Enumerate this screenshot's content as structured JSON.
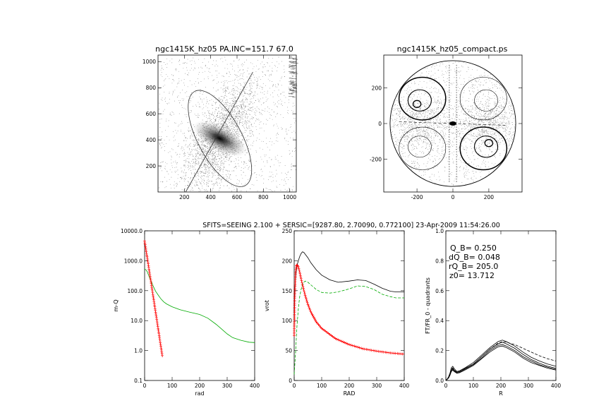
{
  "header": {
    "fit_params": "SFITS=SEEING 2.100 + SERSIC=[9287.80, 2.70090, 0.772100]  23-Apr-2009 11:54:26.00"
  },
  "chart_data": [
    {
      "id": "image_panel",
      "type": "scatter",
      "title": "ngc1415K_hz05 PA,INC=151.7 67.0",
      "xlim": [
        0,
        1050
      ],
      "ylim": [
        0,
        1050
      ],
      "xticks": [
        "200",
        "400",
        "600",
        "800",
        "1000"
      ],
      "yticks": [
        "200",
        "400",
        "600",
        "800",
        "1000"
      ],
      "ellipse": {
        "center": [
          470,
          410
        ],
        "semi_major": 410,
        "semi_minor": 165,
        "pa_deg": 151.7
      },
      "major_axis_line": {
        "x": [
          210,
          720
        ],
        "y": [
          -30,
          920
        ]
      }
    },
    {
      "id": "compact_panel",
      "type": "scatter",
      "title": "ngc1415K_hz05_compact.ps",
      "xlim": [
        -385,
        385
      ],
      "ylim": [
        -385,
        385
      ],
      "xticks": [
        "-200",
        "0",
        "200"
      ],
      "yticks": [
        "-200",
        "0",
        "200"
      ],
      "disk_radius": 350
    },
    {
      "id": "mu_profile",
      "type": "line",
      "xlabel": "rad",
      "ylabel": "m-Q",
      "xlim": [
        0,
        400
      ],
      "ylim": [
        0.1,
        10000
      ],
      "yscale": "log",
      "xticks": [
        "0",
        "100",
        "200",
        "300",
        "400"
      ],
      "yticks": [
        "0.1",
        "1.0",
        "10.0",
        "100.0",
        "1000.0",
        "10000.0"
      ],
      "series": [
        {
          "color": "#00aa00",
          "x": [
            0,
            5,
            10,
            15,
            20,
            30,
            40,
            50,
            60,
            70,
            80,
            100,
            130,
            160,
            200,
            230,
            260,
            280,
            300,
            320,
            350,
            380,
            400
          ],
          "y": [
            520,
            500,
            420,
            320,
            250,
            150,
            95,
            70,
            52,
            42,
            36,
            29,
            23,
            19.5,
            16,
            12,
            7.5,
            5.2,
            3.6,
            2.7,
            2.2,
            1.9,
            1.85
          ]
        },
        {
          "color": "#ff0000",
          "marker": "plus",
          "x": [
            0,
            3,
            6,
            10,
            15,
            20,
            25,
            30,
            35,
            40,
            45,
            50,
            55,
            60,
            65
          ],
          "y": [
            4500,
            3000,
            2000,
            1200,
            600,
            300,
            150,
            75,
            38,
            19,
            9.6,
            4.8,
            2.4,
            1.2,
            0.6
          ]
        }
      ]
    },
    {
      "id": "rotation_curve",
      "type": "line",
      "xlabel": "RAD",
      "ylabel": "vrot",
      "xlim": [
        0,
        400
      ],
      "ylim": [
        0,
        250
      ],
      "xticks": [
        "0",
        "100",
        "200",
        "300",
        "400"
      ],
      "yticks": [
        "0",
        "50",
        "100",
        "150",
        "200",
        "250"
      ],
      "series": [
        {
          "color": "#000000",
          "x": [
            0,
            2,
            5,
            8,
            10,
            15,
            20,
            25,
            30,
            35,
            40,
            50,
            60,
            80,
            100,
            130,
            160,
            200,
            230,
            260,
            290,
            320,
            350,
            370,
            400
          ],
          "y": [
            115,
            150,
            172,
            185,
            192,
            200,
            207,
            212,
            215,
            214,
            211,
            205,
            197,
            185,
            176,
            168,
            164,
            166,
            168,
            167,
            161,
            154,
            149,
            148,
            148
          ]
        },
        {
          "color": "#00aa00",
          "dash": true,
          "x": [
            0,
            5,
            10,
            15,
            20,
            25,
            30,
            35,
            40,
            50,
            60,
            80,
            100,
            130,
            160,
            200,
            230,
            260,
            290,
            320,
            350,
            370,
            400
          ],
          "y": [
            10,
            45,
            90,
            120,
            140,
            152,
            160,
            164,
            166,
            164,
            160,
            152,
            147,
            146,
            148,
            153,
            158,
            157,
            152,
            144,
            140,
            138,
            138
          ]
        },
        {
          "color": "#ff0000",
          "marker": "plus",
          "x": [
            0,
            2,
            5,
            8,
            10,
            15,
            20,
            25,
            30,
            40,
            50,
            60,
            80,
            100,
            150,
            200,
            250,
            300,
            350,
            400
          ],
          "y": [
            75,
            140,
            180,
            191,
            193,
            190,
            181,
            170,
            160,
            142,
            127,
            115,
            98,
            87,
            70,
            60,
            53,
            49,
            46,
            44
          ]
        }
      ]
    },
    {
      "id": "q_profile",
      "type": "line",
      "xlabel": "R",
      "ylabel": "FT/FR_0 - quadrants",
      "xlim": [
        0,
        400
      ],
      "ylim": [
        0,
        1.0
      ],
      "xticks": [
        "0",
        "100",
        "200",
        "300",
        "400"
      ],
      "yticks": [
        "0.0",
        "0.2",
        "0.4",
        "0.6",
        "0.8",
        "1.0"
      ],
      "annotations": [
        "Q_B=  0.250",
        "dQ_B=  0.048",
        "rQ_B=  205.0",
        "z0= 13.712"
      ],
      "x": [
        0,
        5,
        10,
        15,
        20,
        25,
        30,
        40,
        50,
        70,
        100,
        130,
        160,
        190,
        205,
        220,
        250,
        280,
        310,
        340,
        370,
        400
      ],
      "series": [
        {
          "color": "#000000",
          "y": [
            0,
            0.01,
            0.025,
            0.05,
            0.085,
            0.095,
            0.08,
            0.06,
            0.065,
            0.085,
            0.12,
            0.17,
            0.22,
            0.26,
            0.27,
            0.26,
            0.23,
            0.19,
            0.155,
            0.13,
            0.11,
            0.095
          ]
        },
        {
          "color": "#000000",
          "y": [
            0,
            0.01,
            0.02,
            0.045,
            0.075,
            0.085,
            0.07,
            0.055,
            0.06,
            0.08,
            0.11,
            0.16,
            0.21,
            0.245,
            0.255,
            0.245,
            0.215,
            0.175,
            0.14,
            0.115,
            0.095,
            0.082
          ]
        },
        {
          "color": "#000000",
          "y": [
            0,
            0.008,
            0.018,
            0.04,
            0.065,
            0.075,
            0.065,
            0.05,
            0.055,
            0.075,
            0.105,
            0.15,
            0.2,
            0.235,
            0.24,
            0.23,
            0.2,
            0.16,
            0.13,
            0.105,
            0.088,
            0.075
          ]
        },
        {
          "color": "#000000",
          "y": [
            0,
            0.008,
            0.016,
            0.035,
            0.06,
            0.07,
            0.06,
            0.048,
            0.052,
            0.07,
            0.1,
            0.145,
            0.19,
            0.225,
            0.23,
            0.22,
            0.19,
            0.15,
            0.12,
            0.1,
            0.082,
            0.07
          ]
        },
        {
          "color": "#000000",
          "dash": true,
          "y": [
            0,
            0.01,
            0.022,
            0.045,
            0.07,
            0.08,
            0.07,
            0.055,
            0.06,
            0.08,
            0.11,
            0.16,
            0.21,
            0.25,
            0.26,
            0.255,
            0.24,
            0.215,
            0.19,
            0.165,
            0.145,
            0.13
          ]
        }
      ]
    }
  ]
}
